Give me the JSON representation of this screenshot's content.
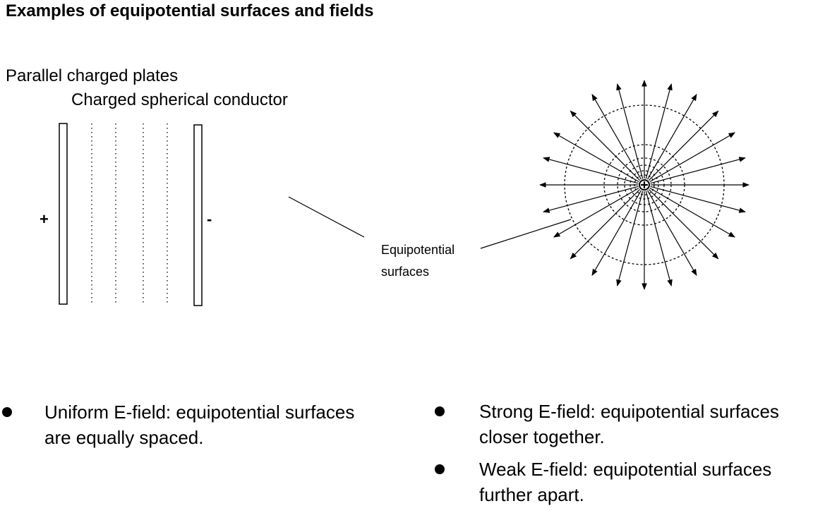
{
  "title": "Examples of equipotential surfaces and fields",
  "diagram": {
    "caption_plates": "Parallel charged plates",
    "caption_sphere": "Charged spherical conductor",
    "plate_positive_sign": "+",
    "plate_negative_sign": "-",
    "annotation_line1": "Equipotential",
    "annotation_line2": "surfaces"
  },
  "bullets_left": [
    "Uniform E-field: equipotential surfaces are equally spaced."
  ],
  "bullets_right": [
    "Strong E-field: equipotential surfaces closer together.",
    "Weak E-field: equipotential surfaces further apart."
  ]
}
